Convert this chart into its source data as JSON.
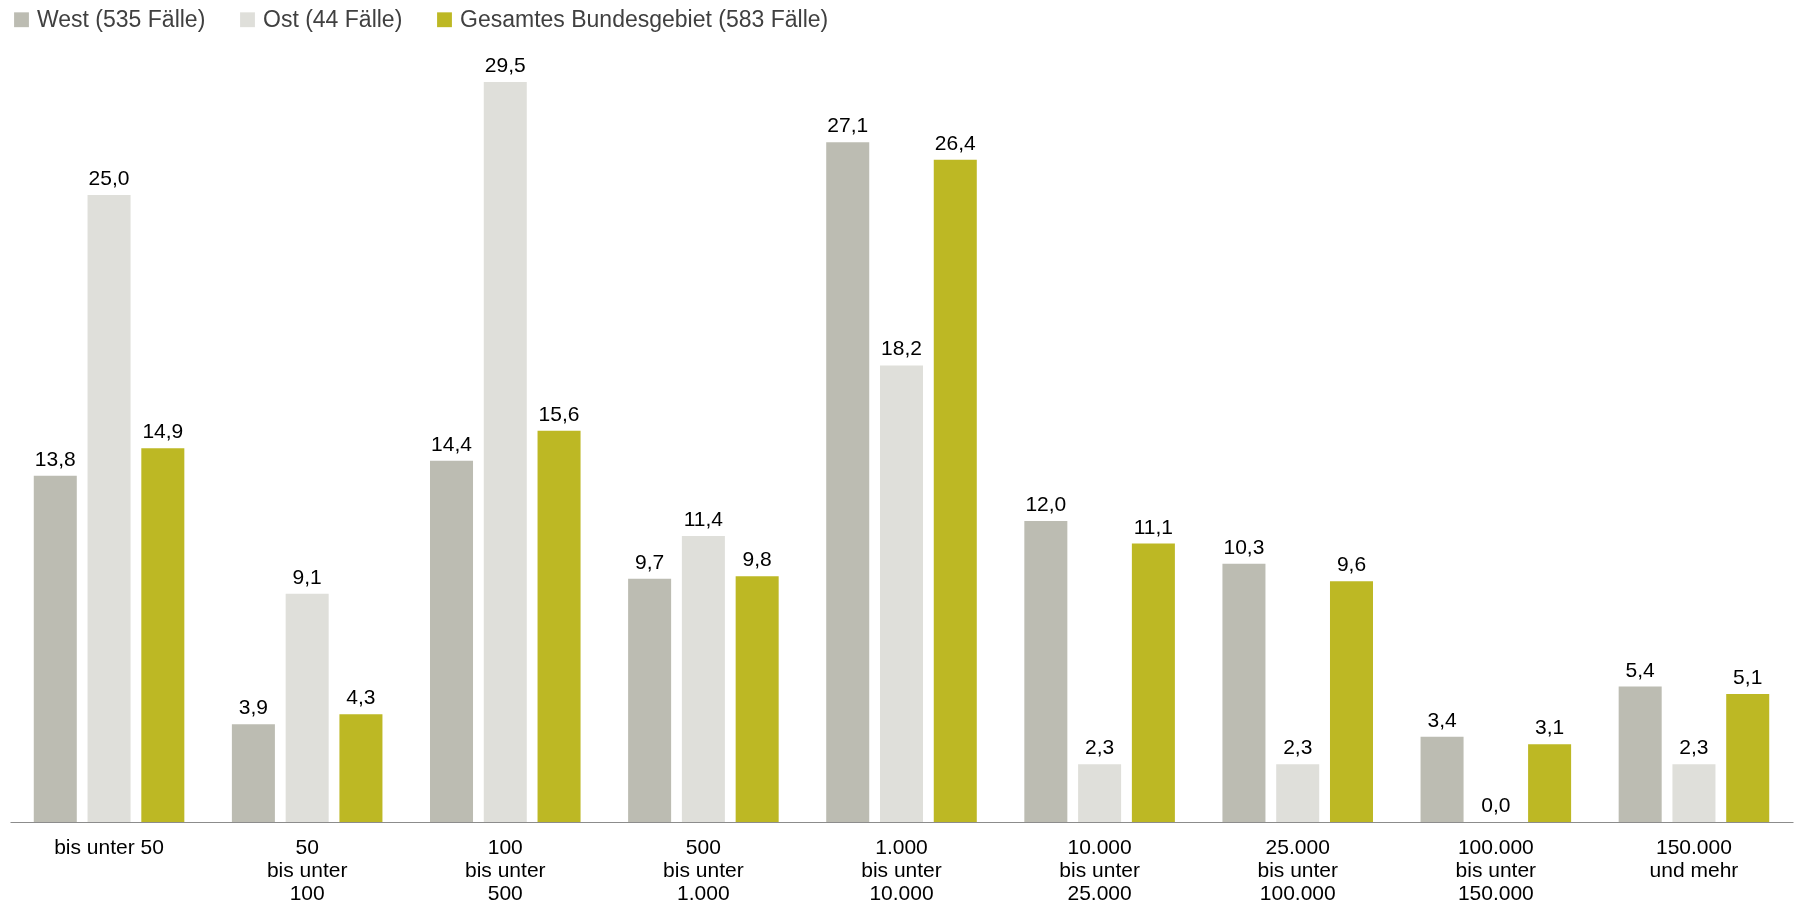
{
  "chart_data": {
    "type": "bar",
    "categories": [
      "bis unter 50",
      "50\nbis unter\n100",
      "100\nbis unter\n500",
      "500\nbis unter\n1.000",
      "1.000\nbis unter\n10.000",
      "10.000\nbis unter\n25.000",
      "25.000\nbis unter\n100.000",
      "100.000\nbis unter\n150.000",
      "150.000\nund mehr"
    ],
    "series": [
      {
        "name": "West (535 Fälle)",
        "color": "#bcbcb2",
        "values": [
          13.8,
          3.9,
          14.4,
          9.7,
          27.1,
          12.0,
          10.3,
          3.4,
          5.4
        ],
        "value_labels": [
          "13,8",
          "3,9",
          "14,4",
          "9,7",
          "27,1",
          "12,0",
          "10,3",
          "3,4",
          "5,4"
        ]
      },
      {
        "name": "Ost (44 Fälle)",
        "color": "#dfdfda",
        "values": [
          25.0,
          9.1,
          29.5,
          11.4,
          18.2,
          2.3,
          2.3,
          0.0,
          2.3
        ],
        "value_labels": [
          "25,0",
          "9,1",
          "29,5",
          "11,4",
          "18,2",
          "2,3",
          "2,3",
          "0,0",
          "2,3"
        ]
      },
      {
        "name": "Gesamtes Bundesgebiet  (583 Fälle)",
        "color": "#bdb824",
        "values": [
          14.9,
          4.3,
          15.6,
          9.8,
          26.4,
          11.1,
          9.6,
          3.1,
          5.1
        ],
        "value_labels": [
          "14,9",
          "4,3",
          "15,6",
          "9,8",
          "26,4",
          "11,1",
          "9,6",
          "3,1",
          "5,1"
        ]
      }
    ],
    "legend": "top",
    "grid": false
  }
}
